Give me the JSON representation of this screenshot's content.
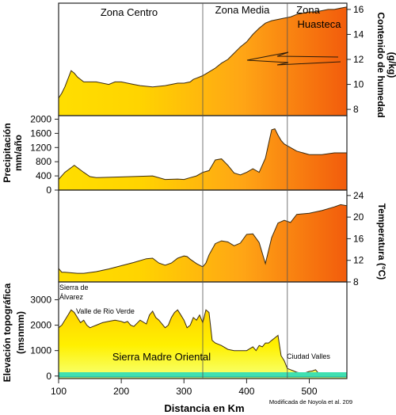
{
  "chart_data": [
    {
      "type": "area",
      "ylabel": "Contenido de humedad (g/kg)",
      "ylim": [
        7.5,
        16.5
      ],
      "yticks": [
        8,
        10,
        12,
        14,
        16
      ],
      "x": [
        100,
        105,
        110,
        120,
        125,
        130,
        140,
        160,
        170,
        180,
        190,
        200,
        210,
        220,
        230,
        250,
        270,
        290,
        300,
        310,
        315,
        320,
        330,
        340,
        350,
        360,
        370,
        380,
        390,
        400,
        410,
        420,
        430,
        440,
        450,
        460,
        470,
        480,
        490,
        500,
        510,
        520,
        530,
        540,
        550,
        560
      ],
      "values": [
        8.9,
        9.3,
        9.8,
        11.1,
        10.9,
        10.6,
        10.2,
        10.2,
        10.1,
        10.0,
        10.2,
        10.2,
        10.1,
        10.0,
        9.9,
        9.8,
        9.9,
        10.1,
        10.1,
        10.2,
        10.4,
        10.5,
        10.7,
        11.0,
        11.3,
        11.7,
        12.0,
        12.5,
        13.0,
        13.4,
        14.0,
        14.5,
        14.9,
        15.1,
        15.2,
        15.3,
        15.4,
        15.6,
        15.7,
        15.8,
        15.8,
        15.9,
        16.0,
        16.0,
        16.1,
        16.2
      ],
      "zones": [
        "Zona Centro",
        "Zona Media",
        "Zona"
      ],
      "annotation": "Huasteca"
    },
    {
      "type": "area",
      "ylabel": "Precipitación mm/año",
      "ylim": [
        0,
        2100
      ],
      "yticks": [
        0,
        400,
        800,
        1200,
        1600,
        2000
      ],
      "x": [
        100,
        110,
        125,
        140,
        150,
        160,
        200,
        250,
        270,
        290,
        300,
        310,
        320,
        330,
        340,
        345,
        350,
        360,
        370,
        380,
        390,
        400,
        410,
        420,
        430,
        440,
        445,
        450,
        455,
        460,
        470,
        480,
        500,
        520,
        540,
        550,
        560
      ],
      "values": [
        300,
        500,
        700,
        500,
        380,
        350,
        370,
        400,
        300,
        310,
        300,
        350,
        400,
        500,
        550,
        700,
        850,
        880,
        700,
        480,
        430,
        500,
        600,
        500,
        900,
        1700,
        1730,
        1550,
        1400,
        1300,
        1200,
        1100,
        1000,
        1000,
        1050,
        1050,
        1050
      ]
    },
    {
      "type": "area",
      "ylabel": "Temperatura (°C)",
      "ylim": [
        8,
        25
      ],
      "yticks": [
        8,
        12,
        16,
        20,
        24
      ],
      "x": [
        100,
        105,
        110,
        130,
        140,
        160,
        180,
        200,
        220,
        240,
        250,
        260,
        270,
        280,
        290,
        300,
        305,
        310,
        320,
        330,
        335,
        340,
        350,
        360,
        370,
        380,
        390,
        400,
        410,
        420,
        430,
        440,
        450,
        460,
        470,
        480,
        500,
        520,
        540,
        550,
        560
      ],
      "values": [
        10.5,
        9.8,
        9.8,
        9.6,
        9.6,
        9.9,
        10.4,
        11.0,
        11.6,
        12.3,
        12.4,
        11.5,
        11.1,
        11.5,
        12.4,
        12.8,
        12.7,
        12.2,
        11.4,
        10.8,
        11.5,
        13.0,
        15.1,
        15.6,
        15.4,
        14.7,
        15.2,
        16.8,
        16.9,
        15.3,
        11.4,
        16.2,
        18.9,
        19.4,
        19.0,
        20.5,
        20.7,
        21.2,
        21.9,
        22.3,
        22.1
      ]
    },
    {
      "type": "area",
      "ylabel": "Elevación topográfica (msnmm)",
      "xlabel": "Distancia en Km",
      "xlim": [
        100,
        560
      ],
      "xticks": [
        100,
        200,
        300,
        400,
        500
      ],
      "ylim": [
        -100,
        3700
      ],
      "yticks": [
        0,
        1000,
        2000,
        3000
      ],
      "x": [
        100,
        105,
        110,
        115,
        120,
        125,
        130,
        135,
        140,
        145,
        150,
        155,
        160,
        170,
        180,
        190,
        200,
        205,
        210,
        215,
        220,
        230,
        240,
        245,
        250,
        255,
        260,
        270,
        275,
        280,
        285,
        290,
        295,
        300,
        305,
        310,
        315,
        320,
        325,
        330,
        335,
        340,
        345,
        350,
        360,
        370,
        380,
        390,
        400,
        410,
        415,
        420,
        425,
        430,
        435,
        440,
        445,
        450,
        455,
        460,
        465,
        470,
        475,
        480,
        490,
        500,
        505,
        510,
        515,
        520,
        530,
        540,
        560
      ],
      "values": [
        1900,
        2000,
        2200,
        2400,
        2600,
        2500,
        2300,
        2100,
        2200,
        2000,
        1900,
        1950,
        2000,
        2100,
        2150,
        2200,
        2150,
        2100,
        2150,
        2000,
        1950,
        2200,
        2050,
        2400,
        2550,
        2300,
        2200,
        1900,
        2000,
        2300,
        2500,
        2600,
        2400,
        2200,
        1900,
        2000,
        2300,
        2200,
        2400,
        2100,
        2600,
        2500,
        1400,
        1300,
        1200,
        1050,
        1000,
        1000,
        1000,
        1150,
        1000,
        1200,
        1150,
        1300,
        1300,
        1400,
        1500,
        1600,
        800,
        600,
        300,
        250,
        200,
        150,
        100,
        180,
        200,
        250,
        100,
        80,
        70,
        60,
        50
      ],
      "annotations": [
        "Sierra de Álvarez",
        "Valle de Rio Verde",
        "Sierra Madre Oriental",
        "Ciudad Valles"
      ],
      "credit": "Modificada de Noyola et al. 209"
    }
  ]
}
